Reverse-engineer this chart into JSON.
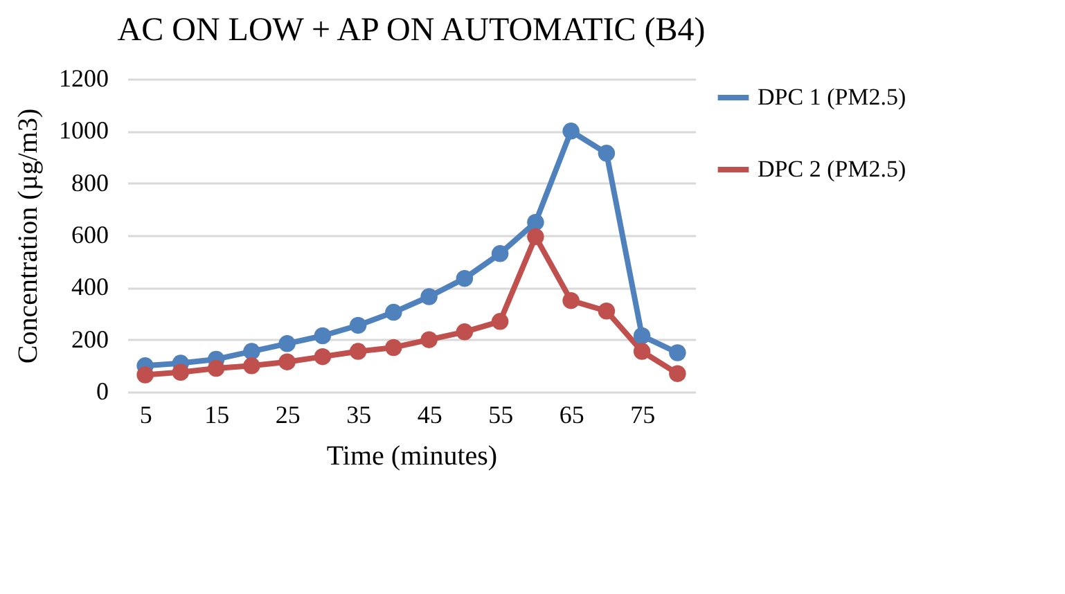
{
  "chart_data": {
    "type": "line",
    "title": "AC ON LOW + AP ON AUTOMATIC (B4)",
    "xlabel": "Time (minutes)",
    "ylabel": "Concentration (µg/m3)",
    "x": [
      5,
      10,
      15,
      20,
      25,
      30,
      35,
      40,
      45,
      50,
      55,
      60,
      65,
      70,
      75,
      80
    ],
    "series": [
      {
        "name": "DPC 1 (PM2.5)",
        "color": "#4f81bd",
        "values": [
          100,
          110,
          125,
          155,
          185,
          215,
          255,
          305,
          365,
          435,
          530,
          650,
          1000,
          915,
          215,
          150
        ]
      },
      {
        "name": "DPC 2 (PM2.5)",
        "color": "#c0504d",
        "values": [
          65,
          75,
          90,
          100,
          115,
          135,
          155,
          170,
          200,
          230,
          270,
          595,
          350,
          310,
          155,
          70
        ]
      }
    ],
    "xlim": [
      2.5,
      82.5
    ],
    "xticks": [
      5,
      15,
      25,
      35,
      45,
      55,
      65,
      75
    ],
    "ylim": [
      0,
      1200
    ],
    "yticks": [
      0,
      200,
      400,
      600,
      800,
      1000,
      1200
    ],
    "grid": "y",
    "legend": "right",
    "marker": "circle",
    "line_style": "solid"
  }
}
